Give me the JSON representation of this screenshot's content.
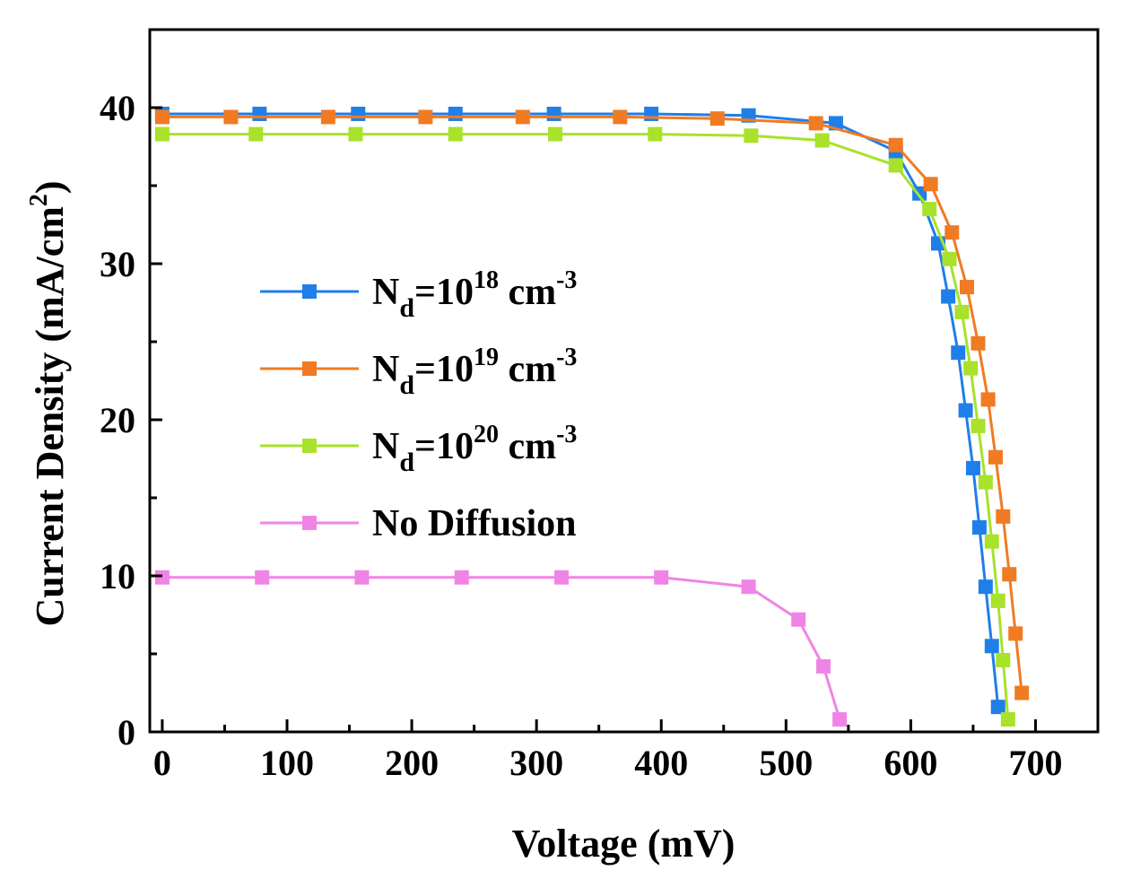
{
  "chart_data": {
    "type": "line",
    "xlabel": "Voltage (mV)",
    "ylabel": {
      "main": "Current Density (mA/cm",
      "sup": "2",
      "end": ")"
    },
    "xlim": [
      -10,
      750
    ],
    "ylim": [
      0,
      45
    ],
    "xticks": [
      0,
      100,
      200,
      300,
      400,
      500,
      600,
      700
    ],
    "yticks": [
      0,
      10,
      20,
      30,
      40
    ],
    "legend_position": "center-left",
    "series": [
      {
        "name": "Nd=10^18 cm-3",
        "label": {
          "base": "N",
          "sub": "d",
          "mid": "=10",
          "sup": "18",
          "unit": " cm",
          "usup": "-3"
        },
        "color": "#1f7fe8",
        "x": [
          0,
          78,
          157,
          235,
          314,
          392,
          470,
          540,
          588,
          607,
          622,
          630,
          638,
          644,
          650,
          655,
          660,
          665,
          670
        ],
        "y": [
          39.6,
          39.6,
          39.6,
          39.6,
          39.6,
          39.6,
          39.5,
          39.0,
          37.2,
          34.5,
          31.3,
          27.9,
          24.3,
          20.6,
          16.9,
          13.1,
          9.3,
          5.5,
          1.6
        ]
      },
      {
        "name": "Nd=10^19 cm-3",
        "label": {
          "base": "N",
          "sub": "d",
          "mid": "=10",
          "sup": "19",
          "unit": " cm",
          "usup": "-3"
        },
        "color": "#f07b22",
        "x": [
          0,
          55,
          133,
          211,
          289,
          367,
          445,
          524,
          588,
          616,
          633,
          645,
          654,
          662,
          668,
          674,
          679,
          684,
          689
        ],
        "y": [
          39.4,
          39.4,
          39.4,
          39.4,
          39.4,
          39.4,
          39.3,
          39.0,
          37.6,
          35.1,
          32.0,
          28.5,
          24.9,
          21.3,
          17.6,
          13.8,
          10.1,
          6.3,
          2.5
        ]
      },
      {
        "name": "Nd=10^20 cm-3",
        "label": {
          "base": "N",
          "sub": "d",
          "mid": "=10",
          "sup": "20",
          "unit": " cm",
          "usup": "-3"
        },
        "color": "#a8e22a",
        "x": [
          0,
          75,
          155,
          235,
          315,
          395,
          472,
          529,
          588,
          615,
          631,
          641,
          648,
          654,
          660,
          665,
          670,
          674,
          678
        ],
        "y": [
          38.3,
          38.3,
          38.3,
          38.3,
          38.3,
          38.3,
          38.2,
          37.9,
          36.3,
          33.5,
          30.3,
          26.9,
          23.3,
          19.6,
          16.0,
          12.2,
          8.4,
          4.6,
          0.8
        ]
      },
      {
        "name": "No Diffusion",
        "label": {
          "base": "No Diffusion",
          "sub": "",
          "mid": "",
          "sup": "",
          "unit": "",
          "usup": ""
        },
        "color": "#f084e6",
        "x": [
          0,
          80,
          160,
          240,
          320,
          400,
          470,
          510,
          530,
          543
        ],
        "y": [
          9.9,
          9.9,
          9.9,
          9.9,
          9.9,
          9.9,
          9.3,
          7.2,
          4.2,
          0.8
        ]
      }
    ]
  }
}
